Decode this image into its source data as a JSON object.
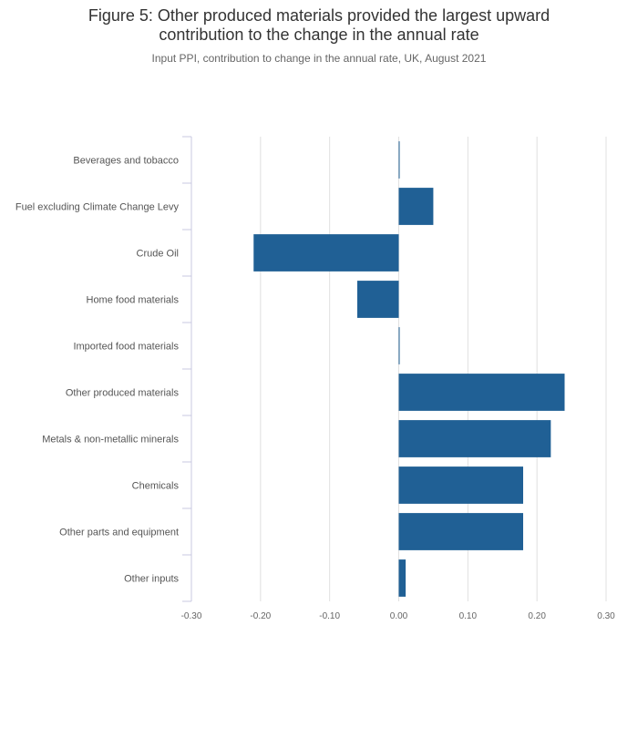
{
  "title_lines": [
    "Figure 5: Other produced materials provided the largest upward",
    "contribution to the change in the annual rate"
  ],
  "subtitle": "Input PPI, contribution to change in the annual rate, UK, August 2021",
  "colors": {
    "bar": "#206095",
    "grid": "#e0e0e0",
    "axis": "#c8c8e0"
  },
  "chart_data": {
    "type": "bar",
    "orientation": "horizontal",
    "categories": [
      "Beverages and tobacco",
      "Fuel excluding Climate Change Levy",
      "Crude Oil",
      "Home food materials",
      "Imported food materials",
      "Other produced materials",
      "Metals & non-metallic minerals",
      "Chemicals",
      "Other parts and equipment",
      "Other inputs"
    ],
    "values": [
      0.0,
      0.05,
      -0.21,
      -0.06,
      0.0,
      0.24,
      0.22,
      0.18,
      0.18,
      0.01
    ],
    "xlim": [
      -0.3,
      0.3
    ],
    "xticks": [
      -0.3,
      -0.2,
      -0.1,
      0.0,
      0.1,
      0.2,
      0.3
    ],
    "xtick_labels": [
      "-0.30",
      "-0.20",
      "-0.10",
      "0.00",
      "0.10",
      "0.20",
      "0.30"
    ],
    "grid": true,
    "legend": false
  }
}
